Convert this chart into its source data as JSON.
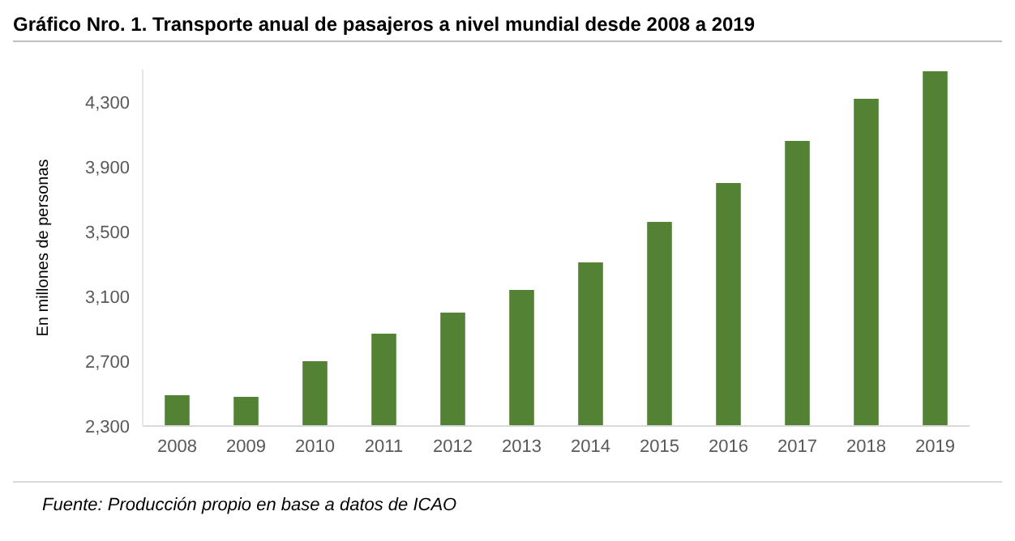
{
  "chart_data": {
    "type": "bar",
    "title": "Gráfico Nro. 1. Transporte anual de pasajeros a nivel mundial desde 2008 a 2019",
    "ylabel": "En millones de personas",
    "categories": [
      "2008",
      "2009",
      "2010",
      "2011",
      "2012",
      "2013",
      "2014",
      "2015",
      "2016",
      "2017",
      "2018",
      "2019"
    ],
    "values": [
      2490,
      2480,
      2700,
      2870,
      3000,
      3140,
      3310,
      3560,
      3800,
      4060,
      4320,
      4490
    ],
    "color": "#548235",
    "ylim": [
      2300,
      4500
    ],
    "yticks": [
      {
        "value": 2300,
        "label": "2,300"
      },
      {
        "value": 2700,
        "label": "2,700"
      },
      {
        "value": 3100,
        "label": "3,100"
      },
      {
        "value": 3500,
        "label": "3,500"
      },
      {
        "value": 3900,
        "label": "3,900"
      },
      {
        "value": 4300,
        "label": "4,300"
      }
    ],
    "annotations": [
      "Fuente: Producción propio en base a datos de ICAO"
    ]
  }
}
